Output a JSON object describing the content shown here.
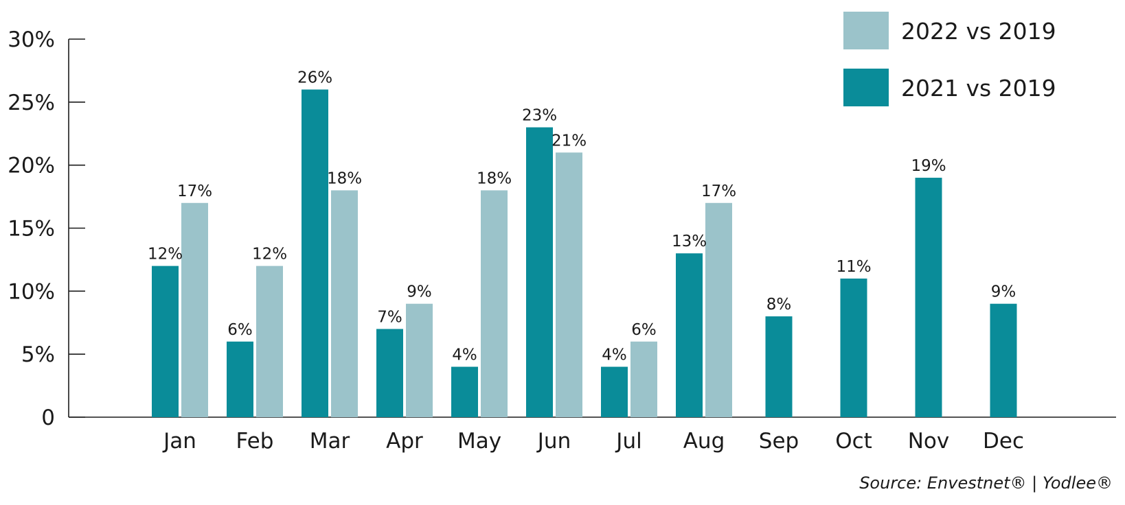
{
  "chart_data": {
    "type": "bar",
    "title": "",
    "xlabel": "",
    "ylabel": "",
    "categories": [
      "Jan",
      "Feb",
      "Mar",
      "Apr",
      "May",
      "Jun",
      "Jul",
      "Aug",
      "Sep",
      "Oct",
      "Nov",
      "Dec"
    ],
    "ylim": [
      0,
      30
    ],
    "yticks": [
      0,
      5,
      10,
      15,
      20,
      25,
      30
    ],
    "ytick_labels": [
      "0",
      "5%",
      "10%",
      "15%",
      "20%",
      "25%",
      "30%"
    ],
    "grid": false,
    "legend_position": "top-right",
    "series": [
      {
        "name": "2021 vs 2019",
        "color": "#0a8c99",
        "values": [
          12,
          6,
          26,
          7,
          4,
          23,
          4,
          13,
          8,
          11,
          19,
          9
        ],
        "labels": [
          "12%",
          "6%",
          "26%",
          "7%",
          "4%",
          "23%",
          "4%",
          "13%",
          "8%",
          "11%",
          "19%",
          "9%"
        ]
      },
      {
        "name": "2022 vs 2019",
        "color": "#9bc3ca",
        "values": [
          17,
          12,
          18,
          9,
          18,
          21,
          6,
          17,
          null,
          null,
          null,
          null
        ],
        "labels": [
          "17%",
          "12%",
          "18%",
          "9%",
          "18%",
          "21%",
          "6%",
          "17%",
          null,
          null,
          null,
          null
        ]
      }
    ],
    "legend_order": [
      "2022 vs 2019",
      "2021 vs 2019"
    ],
    "source": "Source: Envestnet® | Yodlee®"
  }
}
